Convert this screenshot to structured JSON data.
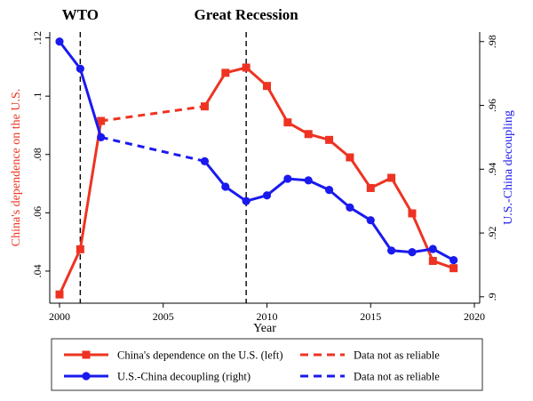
{
  "chart_data": {
    "type": "line",
    "x": [
      2000,
      2001,
      2002,
      2007,
      2008,
      2009,
      2010,
      2011,
      2012,
      2013,
      2014,
      2015,
      2016,
      2017,
      2018,
      2019
    ],
    "xlabel": "Year",
    "xlim": [
      2000,
      2020
    ],
    "xticks": [
      "2000",
      "2005",
      "2010",
      "2015",
      "2020"
    ],
    "series": [
      {
        "name": "China's dependence on the U.S. (left)",
        "axis": "left",
        "color": "#ee3322",
        "marker": "square",
        "values": [
          0.032,
          0.0475,
          0.0915,
          0.0965,
          0.108,
          0.1098,
          0.1035,
          0.091,
          0.087,
          0.085,
          0.079,
          0.0685,
          0.072,
          0.0598,
          0.0435,
          0.041
        ],
        "unreliable_segment": [
          2002,
          2007
        ]
      },
      {
        "name": "U.S.-China decoupling (right)",
        "axis": "right",
        "color": "#1a1aee",
        "marker": "circle",
        "values": [
          0.98,
          0.9715,
          0.95,
          0.9425,
          0.9345,
          0.93,
          0.9318,
          0.937,
          0.9365,
          0.9335,
          0.928,
          0.924,
          0.9145,
          0.914,
          0.915,
          0.9115
        ],
        "unreliable_segment": [
          2002,
          2007
        ]
      }
    ],
    "y_left": {
      "label": "China's dependence on the U.S.",
      "color": "#ee3322",
      "ylim": [
        0.029,
        0.122
      ],
      "ticks": [
        0.04,
        0.06,
        0.08,
        0.1,
        0.12
      ],
      "tick_labels": [
        ".04",
        ".06",
        ".08",
        ".1",
        ".12"
      ]
    },
    "y_right": {
      "label": "U.S.-China decoupling",
      "color": "#1a1aee",
      "ylim": [
        0.898,
        0.983
      ],
      "ticks": [
        0.9,
        0.92,
        0.94,
        0.96,
        0.98
      ],
      "tick_labels": [
        ".9",
        ".92",
        ".94",
        ".96",
        ".98"
      ]
    },
    "events": [
      {
        "label": "WTO",
        "x": 2001
      },
      {
        "label": "Great Recession",
        "x": 2009
      }
    ],
    "legend": {
      "placement": "bottom",
      "entries": [
        {
          "label": "China's dependence on the U.S. (left)",
          "color": "#ee3322",
          "style": "solid",
          "marker": "square"
        },
        {
          "label": "Data not as reliable",
          "color": "#ee3322",
          "style": "dashed"
        },
        {
          "label": "U.S.-China decoupling (right)",
          "color": "#1a1aee",
          "style": "solid",
          "marker": "circle"
        },
        {
          "label": "Data not as reliable",
          "color": "#1a1aee",
          "style": "dashed"
        }
      ]
    },
    "grid": false
  }
}
